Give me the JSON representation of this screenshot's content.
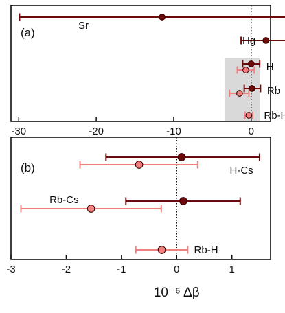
{
  "colors": {
    "dark": "#6b0a0a",
    "light": "#f08080",
    "shade": "#d9d9d9"
  },
  "chart_data": [
    {
      "type": "scatter",
      "panel_label": "(a)",
      "xlabel": "",
      "xlim": [
        -31,
        2.5
      ],
      "xticks": [
        -30,
        -20,
        -10,
        0
      ],
      "reference_line_x": 0,
      "shaded_x_range": [
        -3.4,
        1.1
      ],
      "points": [
        {
          "label": "Sr",
          "color": "dark",
          "x": -11.5,
          "xmin": -29.9,
          "xmax": 6.7
        },
        {
          "label": "Hg",
          "color": "dark",
          "x": 1.9,
          "xmin": -1.3,
          "xmax": 5.2
        },
        {
          "label": "H",
          "color": "dark",
          "x": 0.0,
          "xmin": -1.1,
          "xmax": 1.1
        },
        {
          "label": "",
          "color": "light",
          "x": -0.7,
          "xmin": -1.8,
          "xmax": 0.4
        },
        {
          "label": "Rb",
          "color": "dark",
          "x": 0.1,
          "xmin": -0.9,
          "xmax": 1.2
        },
        {
          "label": "",
          "color": "light",
          "x": -1.5,
          "xmin": -2.8,
          "xmax": -0.3
        },
        {
          "label": "Rb-H",
          "color": "light",
          "x": -0.3,
          "xmin": -0.8,
          "xmax": 0.2
        }
      ]
    },
    {
      "type": "scatter",
      "panel_label": "(b)",
      "xlabel": "10⁻⁶ Δβ",
      "xlim": [
        -3,
        1.7
      ],
      "xticks": [
        -3,
        -2,
        -1,
        0,
        1
      ],
      "reference_line_x": 0,
      "points": [
        {
          "label": "H-Cs",
          "color": "dark",
          "x": 0.09,
          "xmin": -1.28,
          "xmax": 1.5
        },
        {
          "label": "",
          "color": "light",
          "x": -0.68,
          "xmin": -1.75,
          "xmax": 0.38
        },
        {
          "label": "",
          "color": "dark",
          "x": 0.12,
          "xmin": -0.92,
          "xmax": 1.15
        },
        {
          "label": "Rb-Cs",
          "color": "light",
          "x": -1.55,
          "xmin": -2.82,
          "xmax": -0.28
        },
        {
          "label": "Rb-H",
          "color": "light",
          "x": -0.27,
          "xmin": -0.74,
          "xmax": 0.2
        }
      ]
    }
  ]
}
